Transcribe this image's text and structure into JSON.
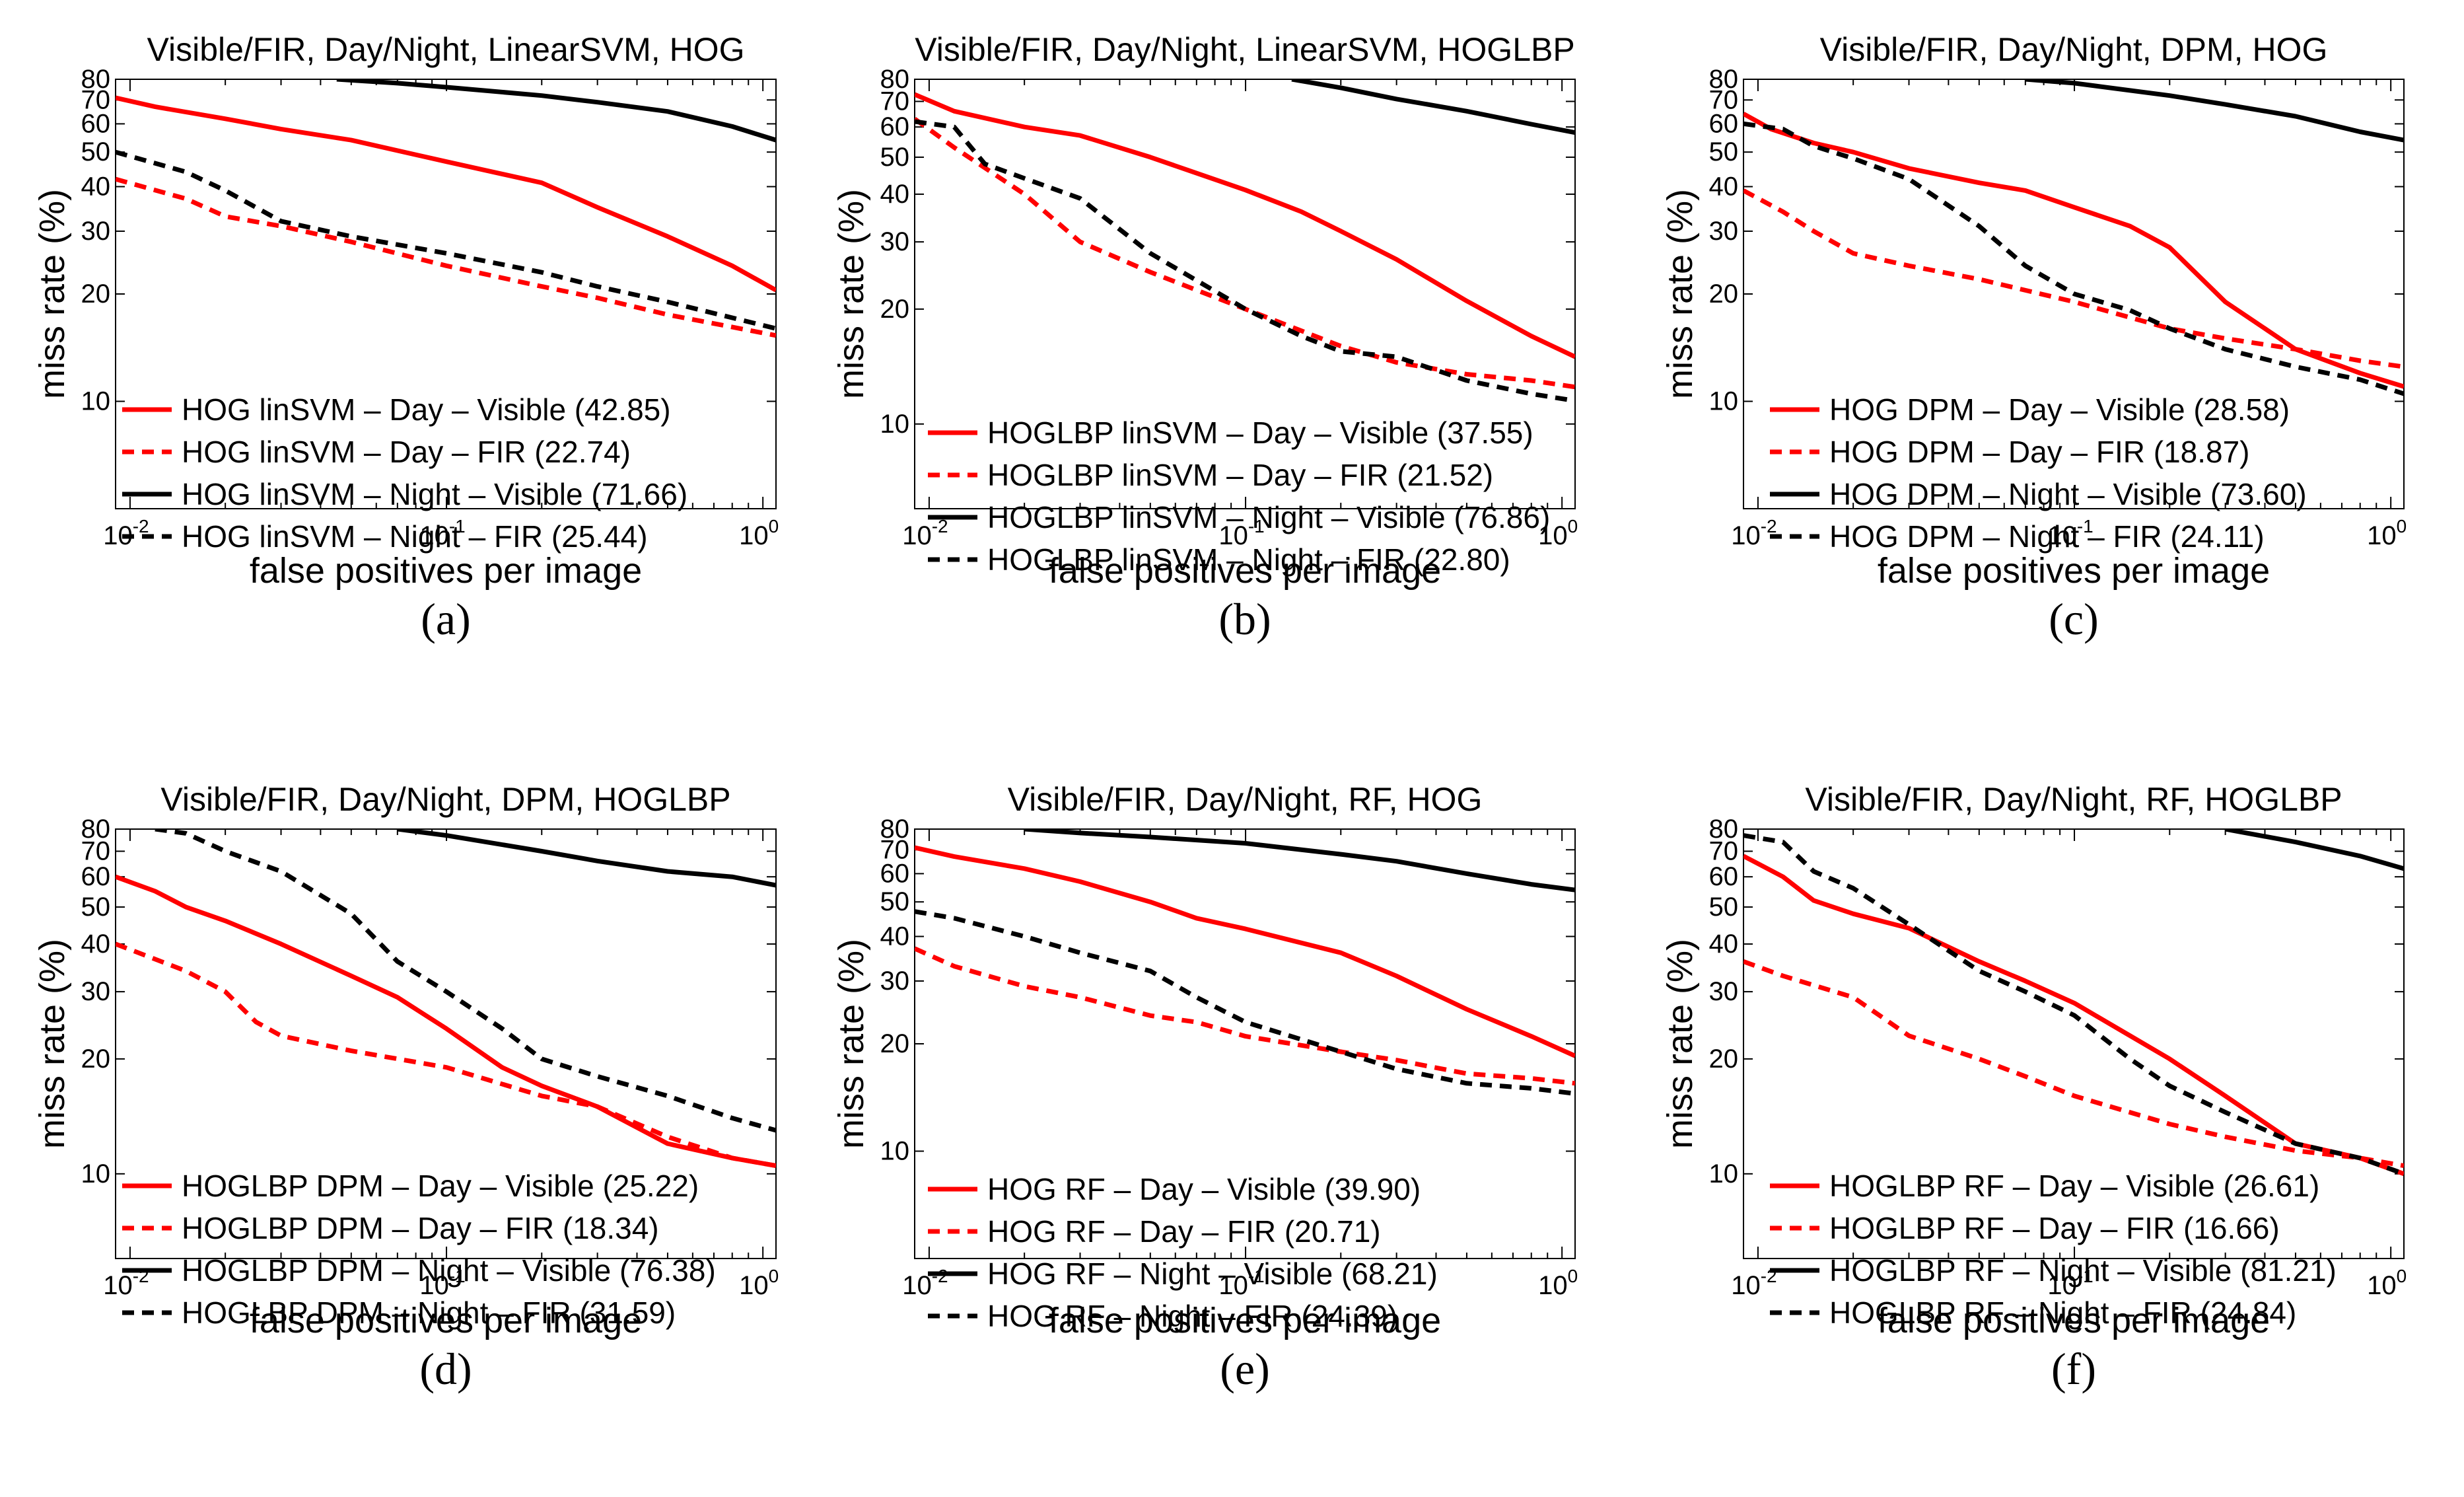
{
  "colors": {
    "day": "#ff0000",
    "night": "#000000"
  },
  "chart_data": [
    {
      "type": "line",
      "caption": "(a)",
      "title": "Visible/FIR, Day/Night, LinearSVM, HOG",
      "xlabel": "false positives per image",
      "ylabel": "miss rate (%)",
      "xscale": "log",
      "yscale": "log",
      "xlim": [
        0.009,
        1.1
      ],
      "ylim": [
        5,
        80
      ],
      "yticks": [
        10,
        20,
        30,
        40,
        50,
        60,
        70,
        80
      ],
      "xticks": [
        {
          "base": "10",
          "exp": "-2",
          "value": 0.01
        },
        {
          "base": "10",
          "exp": "-1",
          "value": 0.1
        },
        {
          "base": "10",
          "exp": "0",
          "value": 1
        }
      ],
      "legend_position": "lower-left",
      "series": [
        {
          "name": "HOG linSVM – Day – Visible (42.85)",
          "color": "#ff0000",
          "dash": "solid",
          "x": [
            0.009,
            0.012,
            0.02,
            0.03,
            0.05,
            0.1,
            0.2,
            0.3,
            0.5,
            0.8,
            1.1
          ],
          "y": [
            71,
            67,
            62,
            58,
            54,
            47,
            41,
            35,
            29,
            24,
            20.5
          ]
        },
        {
          "name": "HOG linSVM – Day – FIR (22.74)",
          "color": "#ff0000",
          "dash": "dashed",
          "x": [
            0.009,
            0.015,
            0.02,
            0.03,
            0.05,
            0.1,
            0.2,
            0.3,
            0.5,
            1.1
          ],
          "y": [
            42,
            37,
            33,
            31,
            28,
            24,
            21,
            19.5,
            17.5,
            15.3
          ]
        },
        {
          "name": "HOG linSVM – Night – Visible (71.66)",
          "color": "#000000",
          "dash": "solid",
          "x": [
            0.045,
            0.07,
            0.1,
            0.2,
            0.3,
            0.5,
            0.8,
            1.1
          ],
          "y": [
            80,
            78,
            76,
            72,
            69,
            65,
            59,
            54
          ]
        },
        {
          "name": "HOG linSVM – Night – FIR (25.44)",
          "color": "#000000",
          "dash": "dashed",
          "x": [
            0.009,
            0.015,
            0.02,
            0.03,
            0.05,
            0.1,
            0.2,
            0.3,
            0.5,
            1.1
          ],
          "y": [
            50,
            44,
            39,
            32,
            29,
            26,
            23,
            21,
            19,
            16
          ]
        }
      ]
    },
    {
      "type": "line",
      "caption": "(b)",
      "title": "Visible/FIR, Day/Night, LinearSVM, HOGLBP",
      "xlabel": "false positives per image",
      "ylabel": "miss rate (%)",
      "xscale": "log",
      "yscale": "log",
      "xlim": [
        0.009,
        1.1
      ],
      "ylim": [
        6,
        80
      ],
      "yticks": [
        10,
        20,
        30,
        40,
        50,
        60,
        70,
        80
      ],
      "xticks": [
        {
          "base": "10",
          "exp": "-2",
          "value": 0.01
        },
        {
          "base": "10",
          "exp": "-1",
          "value": 0.1
        },
        {
          "base": "10",
          "exp": "0",
          "value": 1
        }
      ],
      "legend_position": "lower-left",
      "series": [
        {
          "name": "HOGLBP linSVM – Day – Visible (37.55)",
          "color": "#ff0000",
          "dash": "solid",
          "x": [
            0.009,
            0.012,
            0.02,
            0.03,
            0.05,
            0.1,
            0.15,
            0.2,
            0.3,
            0.5,
            0.8,
            1.1
          ],
          "y": [
            73,
            66,
            60,
            57,
            50,
            41,
            36,
            32,
            27,
            21,
            17,
            15
          ]
        },
        {
          "name": "HOGLBP linSVM – Day – FIR (21.52)",
          "color": "#ff0000",
          "dash": "dashed",
          "x": [
            0.009,
            0.012,
            0.02,
            0.03,
            0.05,
            0.1,
            0.2,
            0.3,
            0.5,
            0.8,
            1.1
          ],
          "y": [
            63,
            53,
            40,
            30,
            25,
            20,
            16,
            14.5,
            13.5,
            13,
            12.5
          ]
        },
        {
          "name": "HOGLBP linSVM – Night – Visible (76.86)",
          "color": "#000000",
          "dash": "solid",
          "x": [
            0.14,
            0.2,
            0.3,
            0.5,
            0.8,
            1.1
          ],
          "y": [
            80,
            76,
            71,
            66,
            61,
            58
          ]
        },
        {
          "name": "HOGLBP linSVM – Night – FIR (22.80)",
          "color": "#000000",
          "dash": "dashed",
          "x": [
            0.009,
            0.012,
            0.015,
            0.02,
            0.03,
            0.05,
            0.1,
            0.15,
            0.2,
            0.3,
            0.5,
            0.8,
            1.1
          ],
          "y": [
            62,
            60,
            48,
            44,
            39,
            28,
            20,
            17,
            15.5,
            15,
            13,
            12,
            11.5
          ]
        }
      ]
    },
    {
      "type": "line",
      "caption": "(c)",
      "title": "Visible/FIR, Day/Night, DPM, HOG",
      "xlabel": "false positives per image",
      "ylabel": "miss rate (%)",
      "xscale": "log",
      "yscale": "log",
      "xlim": [
        0.009,
        1.1
      ],
      "ylim": [
        5,
        80
      ],
      "yticks": [
        10,
        20,
        30,
        40,
        50,
        60,
        70,
        80
      ],
      "xticks": [
        {
          "base": "10",
          "exp": "-2",
          "value": 0.01
        },
        {
          "base": "10",
          "exp": "-1",
          "value": 0.1
        },
        {
          "base": "10",
          "exp": "0",
          "value": 1
        }
      ],
      "legend_position": "lower-left",
      "series": [
        {
          "name": "HOG DPM – Day – Visible (28.58)",
          "color": "#ff0000",
          "dash": "solid",
          "x": [
            0.009,
            0.011,
            0.015,
            0.02,
            0.03,
            0.05,
            0.07,
            0.1,
            0.15,
            0.2,
            0.3,
            0.5,
            0.8,
            1.1
          ],
          "y": [
            64,
            58,
            53,
            50,
            45,
            41,
            39,
            35,
            31,
            27,
            19,
            14,
            12,
            11
          ]
        },
        {
          "name": "HOG DPM – Day – FIR (18.87)",
          "color": "#ff0000",
          "dash": "dashed",
          "x": [
            0.009,
            0.012,
            0.015,
            0.02,
            0.03,
            0.05,
            0.1,
            0.2,
            0.3,
            0.5,
            0.8,
            1.1
          ],
          "y": [
            39,
            34,
            30,
            26,
            24,
            22,
            19,
            16,
            15,
            14,
            13,
            12.5
          ]
        },
        {
          "name": "HOG DPM – Night – Visible (73.60)",
          "color": "#000000",
          "dash": "solid",
          "x": [
            0.07,
            0.1,
            0.2,
            0.3,
            0.5,
            0.8,
            1.1
          ],
          "y": [
            80,
            78,
            72,
            68,
            63,
            57,
            54
          ]
        },
        {
          "name": "HOG DPM – Night – FIR (24.11)",
          "color": "#000000",
          "dash": "dashed",
          "x": [
            0.009,
            0.012,
            0.015,
            0.02,
            0.03,
            0.05,
            0.07,
            0.1,
            0.15,
            0.2,
            0.3,
            0.5,
            0.8,
            1.1
          ],
          "y": [
            60,
            58,
            52,
            48,
            42,
            31,
            24,
            20,
            18,
            16,
            14,
            12.5,
            11.5,
            10.5
          ]
        }
      ]
    },
    {
      "type": "line",
      "caption": "(d)",
      "title": "Visible/FIR, Day/Night, DPM, HOGLBP",
      "xlabel": "false positives per image",
      "ylabel": "miss rate (%)",
      "xscale": "log",
      "yscale": "log",
      "xlim": [
        0.009,
        1.1
      ],
      "ylim": [
        6,
        80
      ],
      "yticks": [
        10,
        20,
        30,
        40,
        50,
        60,
        70,
        80
      ],
      "xticks": [
        {
          "base": "10",
          "exp": "-2",
          "value": 0.01
        },
        {
          "base": "10",
          "exp": "-1",
          "value": 0.1
        },
        {
          "base": "10",
          "exp": "0",
          "value": 1
        }
      ],
      "legend_position": "lower-left",
      "series": [
        {
          "name": "HOGLBP DPM – Day – Visible (25.22)",
          "color": "#ff0000",
          "dash": "solid",
          "x": [
            0.009,
            0.012,
            0.015,
            0.02,
            0.03,
            0.05,
            0.07,
            0.1,
            0.15,
            0.2,
            0.3,
            0.5,
            0.8,
            1.1
          ],
          "y": [
            60,
            55,
            50,
            46,
            40,
            33,
            29,
            24,
            19,
            17,
            15,
            12,
            11,
            10.5
          ]
        },
        {
          "name": "HOGLBP DPM – Day – FIR (18.34)",
          "color": "#ff0000",
          "dash": "dashed",
          "x": [
            0.009,
            0.015,
            0.02,
            0.025,
            0.03,
            0.05,
            0.1,
            0.2,
            0.3,
            0.5,
            0.8,
            1.1
          ],
          "y": [
            40,
            34,
            30,
            25,
            23,
            21,
            19,
            16,
            15,
            12.5,
            11,
            10.5
          ]
        },
        {
          "name": "HOGLBP DPM – Night – Visible (76.38)",
          "color": "#000000",
          "dash": "solid",
          "x": [
            0.07,
            0.1,
            0.2,
            0.3,
            0.5,
            0.8,
            1.1
          ],
          "y": [
            80,
            77,
            70,
            66,
            62,
            60,
            57
          ]
        },
        {
          "name": "HOGLBP DPM – Night – FIR (31.59)",
          "color": "#000000",
          "dash": "dashed",
          "x": [
            0.012,
            0.015,
            0.02,
            0.03,
            0.05,
            0.07,
            0.1,
            0.15,
            0.2,
            0.3,
            0.5,
            0.8,
            1.1
          ],
          "y": [
            80,
            78,
            70,
            62,
            48,
            36,
            30,
            24,
            20,
            18,
            16,
            14,
            13
          ]
        }
      ]
    },
    {
      "type": "line",
      "caption": "(e)",
      "title": "Visible/FIR, Day/Night, RF, HOG",
      "xlabel": "false positives per image",
      "ylabel": "miss rate (%)",
      "xscale": "log",
      "yscale": "log",
      "xlim": [
        0.009,
        1.1
      ],
      "ylim": [
        5,
        80
      ],
      "yticks": [
        10,
        20,
        30,
        40,
        50,
        60,
        70,
        80
      ],
      "xticks": [
        {
          "base": "10",
          "exp": "-2",
          "value": 0.01
        },
        {
          "base": "10",
          "exp": "-1",
          "value": 0.1
        },
        {
          "base": "10",
          "exp": "0",
          "value": 1
        }
      ],
      "legend_position": "lower-left",
      "series": [
        {
          "name": "HOG RF – Day – Visible (39.90)",
          "color": "#ff0000",
          "dash": "solid",
          "x": [
            0.009,
            0.012,
            0.02,
            0.03,
            0.05,
            0.07,
            0.1,
            0.2,
            0.3,
            0.5,
            0.8,
            1.1
          ],
          "y": [
            71,
            67,
            62,
            57,
            50,
            45,
            42,
            36,
            31,
            25,
            21,
            18.5
          ]
        },
        {
          "name": "HOG RF – Day – FIR (20.71)",
          "color": "#ff0000",
          "dash": "dashed",
          "x": [
            0.009,
            0.012,
            0.02,
            0.03,
            0.05,
            0.07,
            0.1,
            0.2,
            0.3,
            0.5,
            0.8,
            1.1
          ],
          "y": [
            37,
            33,
            29,
            27,
            24,
            23,
            21,
            19,
            18,
            16.5,
            16,
            15.5
          ]
        },
        {
          "name": "HOG RF – Night – Visible (68.21)",
          "color": "#000000",
          "dash": "solid",
          "x": [
            0.02,
            0.03,
            0.05,
            0.1,
            0.2,
            0.3,
            0.5,
            0.8,
            1.1
          ],
          "y": [
            80,
            78,
            76,
            73,
            68,
            65,
            60,
            56,
            54
          ]
        },
        {
          "name": "HOG RF – Night – FIR (24.39)",
          "color": "#000000",
          "dash": "dashed",
          "x": [
            0.009,
            0.012,
            0.02,
            0.03,
            0.05,
            0.07,
            0.1,
            0.2,
            0.3,
            0.5,
            0.8,
            1.1
          ],
          "y": [
            47,
            45,
            40,
            36,
            32,
            27,
            23,
            19,
            17,
            15.5,
            15,
            14.5
          ]
        }
      ]
    },
    {
      "type": "line",
      "caption": "(f)",
      "title": "Visible/FIR, Day/Night, RF, HOGLBP",
      "xlabel": "false positives per image",
      "ylabel": "miss rate (%)",
      "xscale": "log",
      "yscale": "log",
      "xlim": [
        0.009,
        1.1
      ],
      "ylim": [
        6,
        80
      ],
      "yticks": [
        10,
        20,
        30,
        40,
        50,
        60,
        70,
        80
      ],
      "xticks": [
        {
          "base": "10",
          "exp": "-2",
          "value": 0.01
        },
        {
          "base": "10",
          "exp": "-1",
          "value": 0.1
        },
        {
          "base": "10",
          "exp": "0",
          "value": 1
        }
      ],
      "legend_position": "lower-left",
      "series": [
        {
          "name": "HOGLBP RF – Day – Visible (26.61)",
          "color": "#ff0000",
          "dash": "solid",
          "x": [
            0.009,
            0.012,
            0.015,
            0.02,
            0.03,
            0.05,
            0.07,
            0.1,
            0.15,
            0.2,
            0.3,
            0.5,
            0.8,
            1.1
          ],
          "y": [
            68,
            60,
            52,
            48,
            44,
            36,
            32,
            28,
            23,
            20,
            16,
            12,
            11,
            10
          ]
        },
        {
          "name": "HOGLBP RF – Day – FIR (16.66)",
          "color": "#ff0000",
          "dash": "dashed",
          "x": [
            0.009,
            0.012,
            0.02,
            0.03,
            0.05,
            0.07,
            0.1,
            0.2,
            0.3,
            0.5,
            0.8,
            1.1
          ],
          "y": [
            36,
            33,
            29,
            23,
            20,
            18,
            16,
            13.5,
            12.5,
            11.5,
            11,
            10.5
          ]
        },
        {
          "name": "HOGLBP RF – Night – Visible (81.21)",
          "color": "#000000",
          "dash": "solid",
          "x": [
            0.3,
            0.5,
            0.8,
            1.1
          ],
          "y": [
            80,
            74,
            68,
            63
          ]
        },
        {
          "name": "HOGLBP RF – Night – FIR (24.84)",
          "color": "#000000",
          "dash": "dashed",
          "x": [
            0.009,
            0.012,
            0.015,
            0.02,
            0.03,
            0.05,
            0.07,
            0.1,
            0.15,
            0.2,
            0.3,
            0.5,
            0.8,
            1.1
          ],
          "y": [
            77,
            74,
            62,
            56,
            45,
            34,
            30,
            26,
            20,
            17,
            14.5,
            12,
            11,
            10
          ]
        }
      ]
    }
  ]
}
